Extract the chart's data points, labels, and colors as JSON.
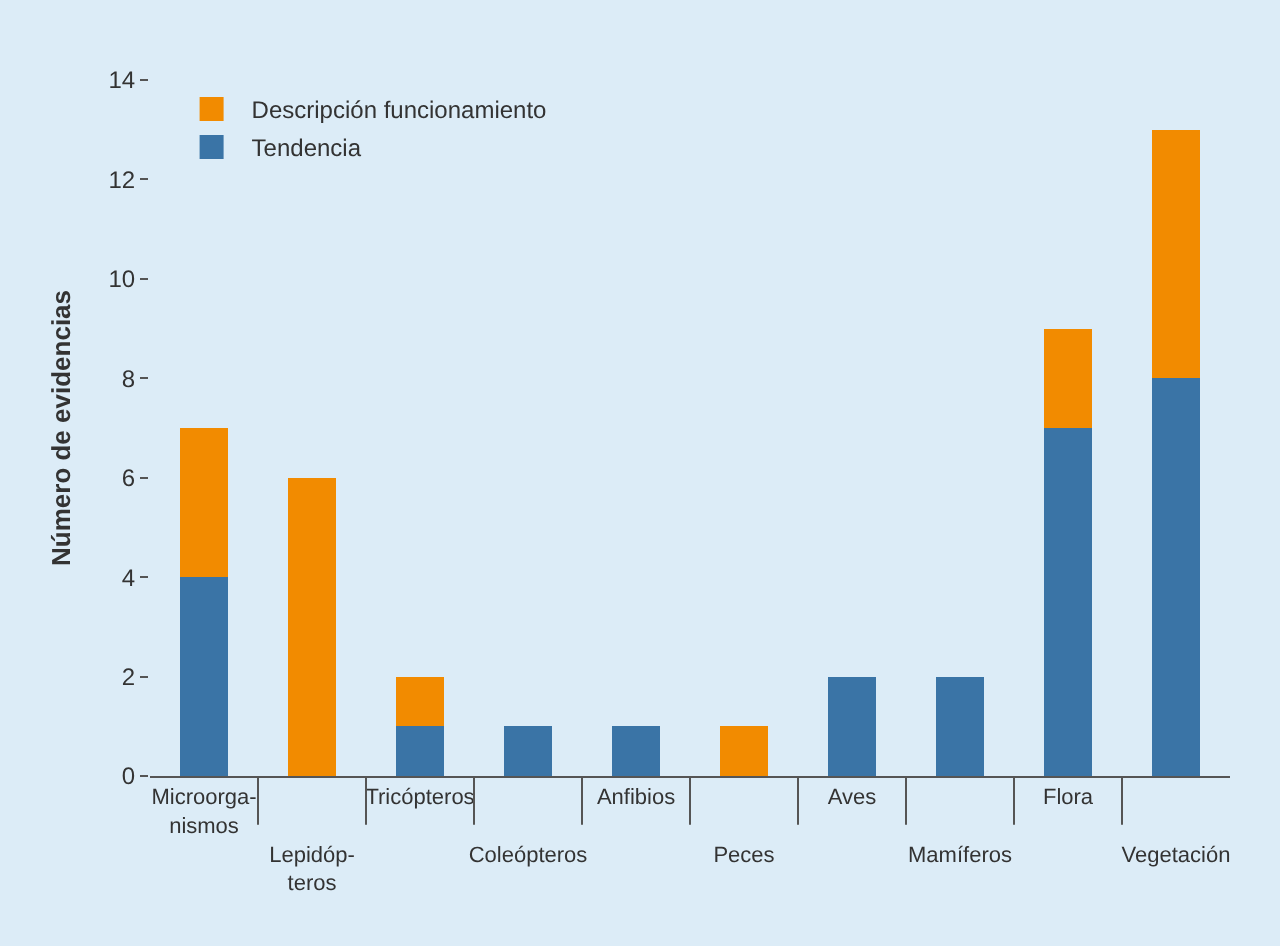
{
  "chart_data": {
    "type": "bar",
    "stacked": true,
    "ylabel": "Número de evidencias",
    "categories": [
      "Microorga-\nnismos",
      "Lepidóp-\nteros",
      "Tricópteros",
      "Coleópteros",
      "Anfibios",
      "Peces",
      "Aves",
      "Mamíferos",
      "Flora",
      "Vegetación"
    ],
    "series": [
      {
        "name": "Tendencia",
        "color": "#3a74a6",
        "values": [
          4,
          0,
          1,
          1,
          1,
          0,
          2,
          2,
          7,
          8
        ]
      },
      {
        "name": "Descripción funcionamiento",
        "color": "#f28b00",
        "values": [
          3,
          6,
          1,
          0,
          0,
          1,
          0,
          0,
          2,
          5
        ]
      }
    ],
    "ylim": [
      0,
      14
    ],
    "yticks": [
      0,
      2,
      4,
      6,
      8,
      10,
      12,
      14
    ],
    "grid": false,
    "legend": "top left"
  }
}
